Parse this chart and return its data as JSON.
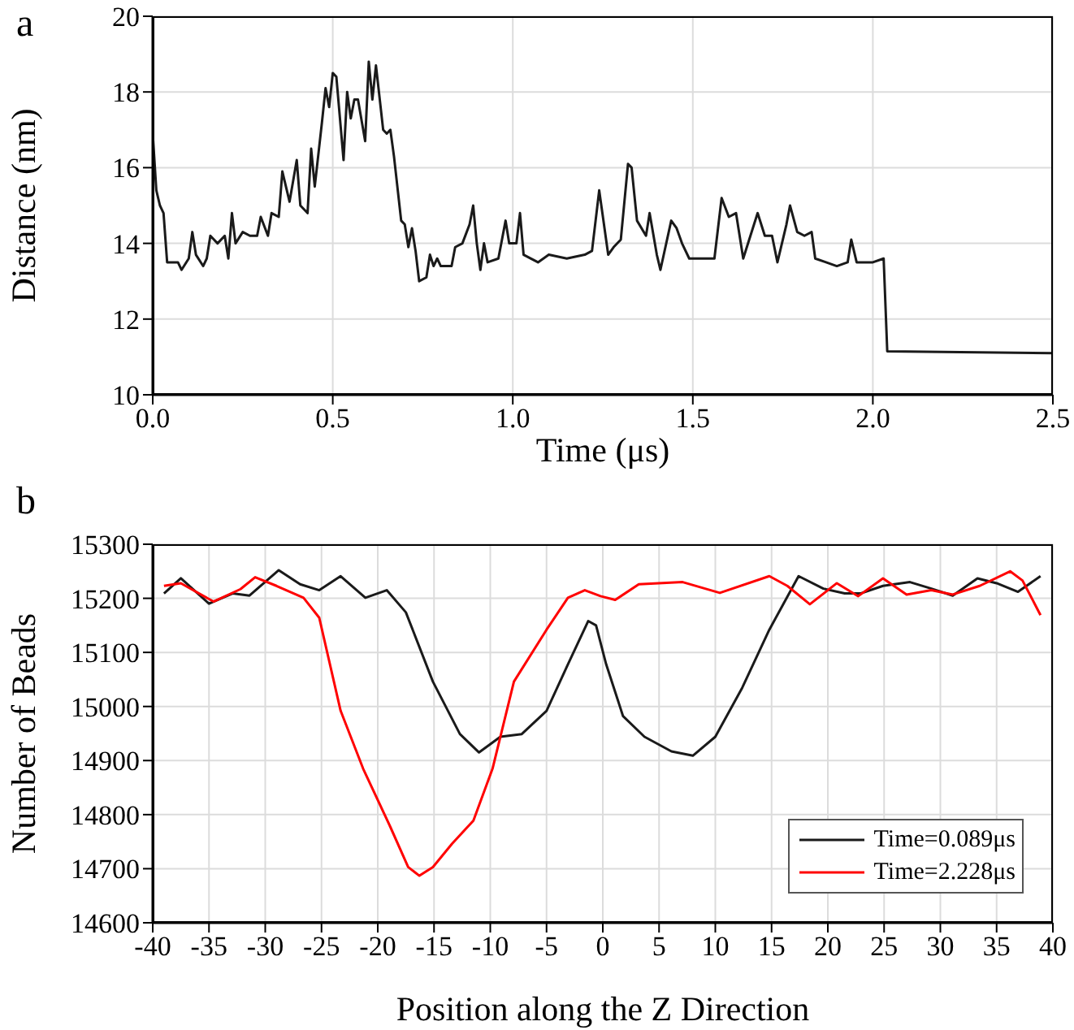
{
  "chart_data": [
    {
      "type": "line",
      "annotations": [
        "a"
      ],
      "xlabel": "Time (μs)",
      "ylabel": "Distance (nm)",
      "xlim": [
        0,
        2.5
      ],
      "ylim": [
        10,
        20
      ],
      "xticks": [
        {
          "value": 0,
          "label": "0.0"
        },
        {
          "value": 0.5,
          "label": "0.5"
        },
        {
          "value": 1,
          "label": "1.0"
        },
        {
          "value": 1.5,
          "label": "1.5"
        },
        {
          "value": 2,
          "label": "2.0"
        },
        {
          "value": 2.5,
          "label": "2.5"
        }
      ],
      "yticks": [
        10,
        12,
        14,
        16,
        18,
        20
      ],
      "grid": true,
      "series": [
        {
          "color": "#1a1a1a",
          "x": [
            0,
            0.01,
            0.02,
            0.03,
            0.04,
            0.07,
            0.08,
            0.1,
            0.11,
            0.12,
            0.14,
            0.15,
            0.16,
            0.18,
            0.2,
            0.21,
            0.22,
            0.23,
            0.25,
            0.27,
            0.29,
            0.3,
            0.32,
            0.33,
            0.35,
            0.36,
            0.38,
            0.4,
            0.41,
            0.43,
            0.44,
            0.45,
            0.47,
            0.48,
            0.49,
            0.5,
            0.51,
            0.53,
            0.54,
            0.55,
            0.56,
            0.57,
            0.59,
            0.6,
            0.61,
            0.62,
            0.64,
            0.65,
            0.66,
            0.67,
            0.69,
            0.7,
            0.71,
            0.72,
            0.73,
            0.74,
            0.76,
            0.77,
            0.78,
            0.79,
            0.8,
            0.83,
            0.84,
            0.86,
            0.88,
            0.89,
            0.9,
            0.91,
            0.92,
            0.93,
            0.96,
            0.98,
            0.99,
            1.01,
            1.02,
            1.03,
            1.07,
            1.1,
            1.15,
            1.2,
            1.22,
            1.24,
            1.265,
            1.28,
            1.3,
            1.32,
            1.33,
            1.345,
            1.37,
            1.38,
            1.4,
            1.41,
            1.44,
            1.455,
            1.47,
            1.49,
            1.53,
            1.56,
            1.58,
            1.6,
            1.62,
            1.64,
            1.68,
            1.7,
            1.72,
            1.735,
            1.76,
            1.77,
            1.79,
            1.81,
            1.83,
            1.84,
            1.87,
            1.9,
            1.93,
            1.94,
            1.955,
            2,
            2.03,
            2.04,
            2.5
          ],
          "values": [
            16.9,
            15.4,
            15.0,
            14.8,
            13.5,
            13.5,
            13.3,
            13.6,
            14.3,
            13.7,
            13.4,
            13.6,
            14.2,
            14.0,
            14.2,
            13.6,
            14.8,
            14.0,
            14.3,
            14.2,
            14.2,
            14.7,
            14.2,
            14.8,
            14.7,
            15.9,
            15.1,
            16.2,
            15.0,
            14.8,
            16.5,
            15.5,
            17.2,
            18.1,
            17.6,
            18.5,
            18.4,
            16.2,
            18.0,
            17.3,
            17.8,
            17.8,
            16.7,
            18.8,
            17.8,
            18.7,
            17.0,
            16.9,
            17.0,
            16.3,
            14.6,
            14.5,
            13.9,
            14.4,
            13.8,
            13.0,
            13.1,
            13.7,
            13.4,
            13.6,
            13.4,
            13.4,
            13.9,
            14.0,
            14.5,
            15.0,
            14.0,
            13.3,
            14.0,
            13.5,
            13.6,
            14.6,
            14.0,
            14.0,
            14.8,
            13.7,
            13.5,
            13.7,
            13.6,
            13.7,
            13.8,
            15.4,
            13.7,
            13.9,
            14.1,
            16.1,
            16.0,
            14.6,
            14.2,
            14.8,
            13.7,
            13.3,
            14.6,
            14.4,
            14.0,
            13.6,
            13.6,
            13.6,
            15.2,
            14.7,
            14.8,
            13.6,
            14.8,
            14.2,
            14.2,
            13.5,
            14.5,
            15.0,
            14.3,
            14.2,
            14.3,
            13.6,
            13.5,
            13.4,
            13.5,
            14.1,
            13.5,
            13.5,
            13.6,
            11.15,
            11.1
          ]
        }
      ]
    },
    {
      "type": "line",
      "annotations": [
        "b"
      ],
      "xlabel": "Position along the Z Direction",
      "ylabel": "Number of Beads",
      "xlim": [
        -40,
        40
      ],
      "ylim": [
        14600,
        15300
      ],
      "xticks": [
        -40,
        -35,
        -30,
        -25,
        -20,
        -15,
        -10,
        -5,
        0,
        5,
        10,
        15,
        20,
        25,
        30,
        35,
        40
      ],
      "yticks": [
        14600,
        14700,
        14800,
        14900,
        15000,
        15100,
        15200,
        15300
      ],
      "grid": true,
      "legend": "bottom right",
      "series": [
        {
          "name": "Time=0.089μs",
          "color": "#1a1a1a",
          "x": [
            -39,
            -37.5,
            -35,
            -32.9,
            -31.4,
            -28.8,
            -26.9,
            -25.2,
            -23.3,
            -21.1,
            -19.2,
            -17.5,
            -15.1,
            -12.7,
            -11,
            -9.1,
            -7.2,
            -5,
            -3.1,
            -1.3,
            -0.6,
            0.3,
            1.8,
            3.7,
            6.1,
            8,
            10,
            12.4,
            14.8,
            17.4,
            19.6,
            21.5,
            22.9,
            24.9,
            27.3,
            29.2,
            31.1,
            33.3,
            35,
            36.9,
            38.9
          ],
          "values": [
            15209,
            15237,
            15190,
            15209,
            15205,
            15252,
            15226,
            15215,
            15241,
            15201,
            15215,
            15174,
            15046,
            14949,
            14915,
            14944,
            14949,
            14992,
            15078,
            15158,
            15150,
            15078,
            14982,
            14944,
            14917,
            14909,
            14944,
            15035,
            15142,
            15241,
            15218,
            15209,
            15209,
            15223,
            15230,
            15218,
            15205,
            15237,
            15228,
            15212,
            15241
          ]
        },
        {
          "name": "Time=2.228μs",
          "color": "#ff0000",
          "x": [
            -39,
            -37.5,
            -34.6,
            -32.2,
            -30.9,
            -29,
            -26.6,
            -25.2,
            -23.3,
            -21.3,
            -18.9,
            -17.3,
            -16.3,
            -15.1,
            -13.4,
            -11.5,
            -9.8,
            -7.9,
            -5,
            -3.1,
            -1.6,
            -0.2,
            1.1,
            3.2,
            7.1,
            10.4,
            14.8,
            16.4,
            18.4,
            20.8,
            22.7,
            24.9,
            27,
            29.2,
            31.1,
            33.5,
            36.2,
            37.3,
            38.9
          ],
          "values": [
            15223,
            15228,
            15194,
            15217,
            15239,
            15223,
            15201,
            15164,
            14992,
            14885,
            14778,
            14703,
            14687,
            14703,
            14746,
            14789,
            14885,
            15046,
            15142,
            15201,
            15215,
            15204,
            15197,
            15226,
            15230,
            15210,
            15241,
            15223,
            15189,
            15228,
            15204,
            15237,
            15207,
            15215,
            15207,
            15223,
            15250,
            15233,
            15169
          ]
        }
      ]
    }
  ]
}
